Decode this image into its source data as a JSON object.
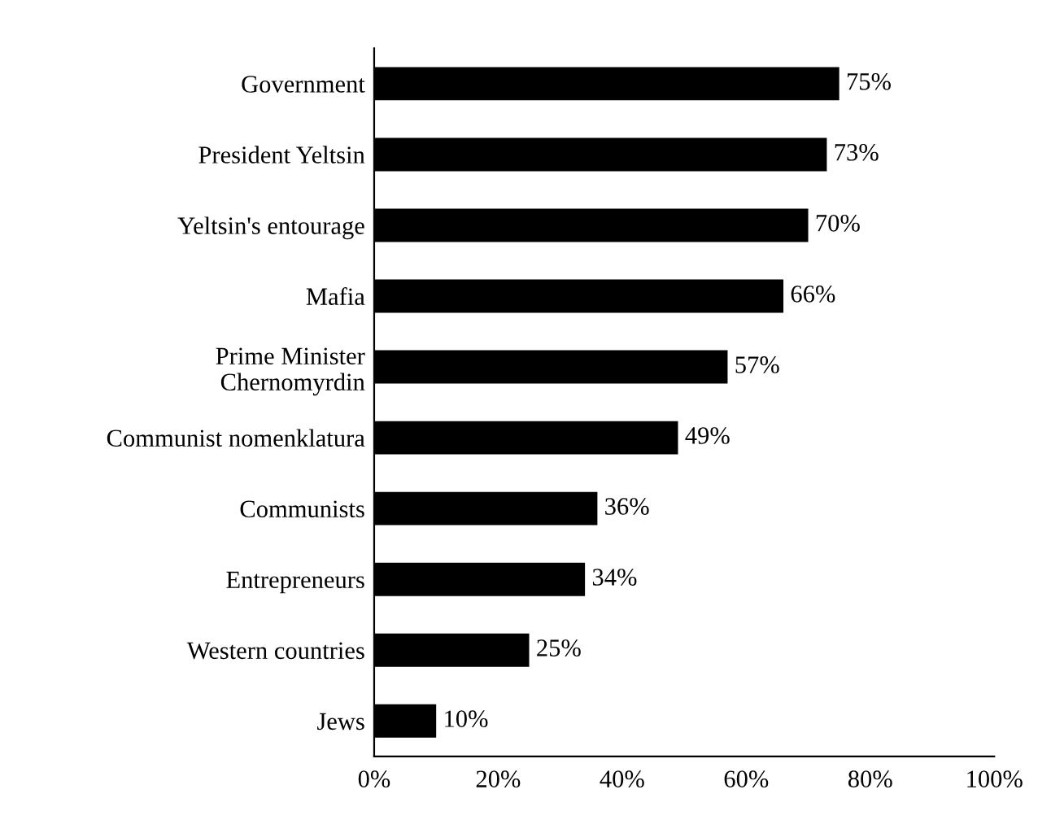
{
  "chart_data": {
    "type": "bar",
    "orientation": "horizontal",
    "categories": [
      "Government",
      "President Yeltsin",
      "Yeltsin's entourage",
      "Mafia",
      "Prime Minister\nChernomyrdin",
      "Communist nomenklatura",
      "Communists",
      "Entrepreneurs",
      "Western countries",
      "Jews"
    ],
    "values": [
      75,
      73,
      70,
      66,
      57,
      49,
      36,
      34,
      25,
      10
    ],
    "value_labels": [
      "75%",
      "73%",
      "70%",
      "66%",
      "57%",
      "49%",
      "36%",
      "34%",
      "25%",
      "10%"
    ],
    "color": "#000000",
    "xlim": [
      0,
      100
    ],
    "xticks": [
      {
        "value": 0,
        "label": "0%"
      },
      {
        "value": 20,
        "label": "20%"
      },
      {
        "value": 40,
        "label": "40%"
      },
      {
        "value": 60,
        "label": "60%"
      },
      {
        "value": 80,
        "label": "80%"
      },
      {
        "value": 100,
        "label": "100%"
      }
    ],
    "grid": false,
    "legend": false
  }
}
